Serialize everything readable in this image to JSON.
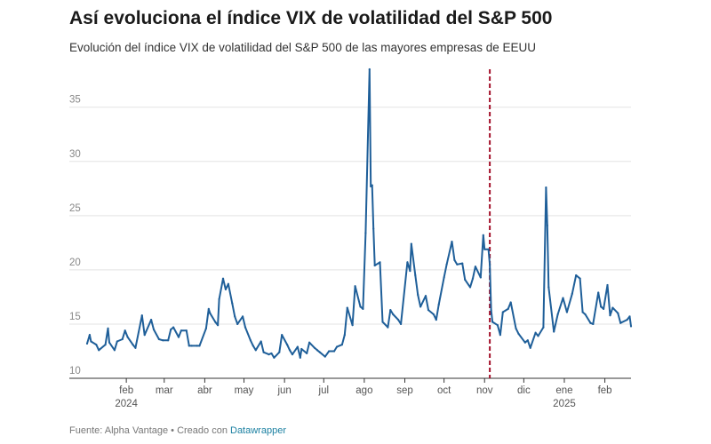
{
  "chart_data": {
    "type": "line",
    "title": "Así evoluciona el índice VIX de volatilidad del S&P 500",
    "subtitle": "Evolución del índice VIX de volatilidad del S&P 500 de las mayores empresas de EEUU",
    "ylim": [
      10,
      38.5
    ],
    "y_ticks": [
      "10",
      "15",
      "20",
      "25",
      "30",
      "35"
    ],
    "x_range": [
      "2024-01-02",
      "2025-02-21"
    ],
    "x_ticks": [
      {
        "date": "2024-02-01",
        "label": "feb",
        "sublabel": "2024"
      },
      {
        "date": "2024-03-01",
        "label": "mar",
        "sublabel": ""
      },
      {
        "date": "2024-04-01",
        "label": "abr",
        "sublabel": ""
      },
      {
        "date": "2024-05-01",
        "label": "may",
        "sublabel": ""
      },
      {
        "date": "2024-06-01",
        "label": "jun",
        "sublabel": ""
      },
      {
        "date": "2024-07-01",
        "label": "jul",
        "sublabel": ""
      },
      {
        "date": "2024-08-01",
        "label": "ago",
        "sublabel": ""
      },
      {
        "date": "2024-09-01",
        "label": "sep",
        "sublabel": ""
      },
      {
        "date": "2024-10-01",
        "label": "oct",
        "sublabel": ""
      },
      {
        "date": "2024-11-01",
        "label": "nov",
        "sublabel": ""
      },
      {
        "date": "2024-12-01",
        "label": "dic",
        "sublabel": ""
      },
      {
        "date": "2025-01-01",
        "label": "ene",
        "sublabel": "2025"
      },
      {
        "date": "2025-02-01",
        "label": "feb",
        "sublabel": ""
      }
    ],
    "grid": true,
    "reference_line": {
      "date": "2024-11-05",
      "color": "#a3102a",
      "style": "dashed"
    },
    "series": [
      {
        "color": "#1f5f99",
        "points": [
          [
            "2024-01-02",
            13.2
          ],
          [
            "2024-01-04",
            14.0
          ],
          [
            "2024-01-05",
            13.4
          ],
          [
            "2024-01-09",
            13.1
          ],
          [
            "2024-01-11",
            12.6
          ],
          [
            "2024-01-16",
            13.1
          ],
          [
            "2024-01-18",
            14.6
          ],
          [
            "2024-01-19",
            13.3
          ],
          [
            "2024-01-23",
            12.6
          ],
          [
            "2024-01-25",
            13.4
          ],
          [
            "2024-01-29",
            13.6
          ],
          [
            "2024-01-31",
            14.4
          ],
          [
            "2024-02-02",
            13.8
          ],
          [
            "2024-02-06",
            13.1
          ],
          [
            "2024-02-08",
            12.8
          ],
          [
            "2024-02-13",
            15.8
          ],
          [
            "2024-02-15",
            14.0
          ],
          [
            "2024-02-20",
            15.4
          ],
          [
            "2024-02-22",
            14.5
          ],
          [
            "2024-02-26",
            13.6
          ],
          [
            "2024-02-29",
            13.5
          ],
          [
            "2024-03-04",
            13.5
          ],
          [
            "2024-03-06",
            14.5
          ],
          [
            "2024-03-08",
            14.7
          ],
          [
            "2024-03-12",
            13.8
          ],
          [
            "2024-03-14",
            14.4
          ],
          [
            "2024-03-18",
            14.4
          ],
          [
            "2024-03-20",
            13.0
          ],
          [
            "2024-03-22",
            13.0
          ],
          [
            "2024-03-26",
            13.0
          ],
          [
            "2024-03-28",
            13.0
          ],
          [
            "2024-04-02",
            14.6
          ],
          [
            "2024-04-04",
            16.4
          ],
          [
            "2024-04-05",
            16.0
          ],
          [
            "2024-04-09",
            15.2
          ],
          [
            "2024-04-11",
            14.9
          ],
          [
            "2024-04-12",
            17.3
          ],
          [
            "2024-04-15",
            19.2
          ],
          [
            "2024-04-17",
            18.2
          ],
          [
            "2024-04-19",
            18.7
          ],
          [
            "2024-04-22",
            16.9
          ],
          [
            "2024-04-24",
            15.7
          ],
          [
            "2024-04-26",
            15.0
          ],
          [
            "2024-04-30",
            15.7
          ],
          [
            "2024-05-02",
            14.7
          ],
          [
            "2024-05-06",
            13.5
          ],
          [
            "2024-05-08",
            13.0
          ],
          [
            "2024-05-10",
            12.6
          ],
          [
            "2024-05-14",
            13.4
          ],
          [
            "2024-05-16",
            12.4
          ],
          [
            "2024-05-20",
            12.2
          ],
          [
            "2024-05-22",
            12.3
          ],
          [
            "2024-05-24",
            11.9
          ],
          [
            "2024-05-28",
            12.4
          ],
          [
            "2024-05-30",
            14.0
          ],
          [
            "2024-06-03",
            13.1
          ],
          [
            "2024-06-05",
            12.6
          ],
          [
            "2024-06-07",
            12.2
          ],
          [
            "2024-06-11",
            12.9
          ],
          [
            "2024-06-13",
            11.9
          ],
          [
            "2024-06-14",
            12.7
          ],
          [
            "2024-06-18",
            12.3
          ],
          [
            "2024-06-20",
            13.3
          ],
          [
            "2024-06-24",
            12.8
          ],
          [
            "2024-06-26",
            12.6
          ],
          [
            "2024-06-28",
            12.4
          ],
          [
            "2024-07-02",
            12.0
          ],
          [
            "2024-07-05",
            12.5
          ],
          [
            "2024-07-09",
            12.5
          ],
          [
            "2024-07-11",
            12.9
          ],
          [
            "2024-07-15",
            13.1
          ],
          [
            "2024-07-17",
            14.0
          ],
          [
            "2024-07-19",
            16.5
          ],
          [
            "2024-07-23",
            14.9
          ],
          [
            "2024-07-25",
            18.5
          ],
          [
            "2024-07-29",
            16.6
          ],
          [
            "2024-07-31",
            16.4
          ],
          [
            "2024-08-02",
            23.4
          ],
          [
            "2024-08-05",
            38.5
          ],
          [
            "2024-08-06",
            27.7
          ],
          [
            "2024-08-07",
            27.8
          ],
          [
            "2024-08-08",
            23.8
          ],
          [
            "2024-08-09",
            20.4
          ],
          [
            "2024-08-13",
            20.7
          ],
          [
            "2024-08-15",
            15.2
          ],
          [
            "2024-08-19",
            14.7
          ],
          [
            "2024-08-21",
            16.3
          ],
          [
            "2024-08-23",
            15.9
          ],
          [
            "2024-08-27",
            15.4
          ],
          [
            "2024-08-29",
            15.0
          ],
          [
            "2024-09-03",
            20.7
          ],
          [
            "2024-09-05",
            19.9
          ],
          [
            "2024-09-06",
            22.4
          ],
          [
            "2024-09-09",
            19.5
          ],
          [
            "2024-09-11",
            17.7
          ],
          [
            "2024-09-13",
            16.6
          ],
          [
            "2024-09-17",
            17.6
          ],
          [
            "2024-09-19",
            16.3
          ],
          [
            "2024-09-23",
            15.9
          ],
          [
            "2024-09-25",
            15.4
          ],
          [
            "2024-09-27",
            16.8
          ],
          [
            "2024-10-01",
            19.3
          ],
          [
            "2024-10-03",
            20.5
          ],
          [
            "2024-10-07",
            22.6
          ],
          [
            "2024-10-09",
            20.9
          ],
          [
            "2024-10-11",
            20.5
          ],
          [
            "2024-10-15",
            20.6
          ],
          [
            "2024-10-17",
            19.1
          ],
          [
            "2024-10-21",
            18.4
          ],
          [
            "2024-10-23",
            19.2
          ],
          [
            "2024-10-25",
            20.3
          ],
          [
            "2024-10-29",
            19.3
          ],
          [
            "2024-10-31",
            23.2
          ],
          [
            "2024-11-01",
            21.9
          ],
          [
            "2024-11-04",
            21.9
          ],
          [
            "2024-11-05",
            20.5
          ],
          [
            "2024-11-06",
            16.3
          ],
          [
            "2024-11-07",
            15.2
          ],
          [
            "2024-11-11",
            14.9
          ],
          [
            "2024-11-13",
            14.0
          ],
          [
            "2024-11-15",
            16.1
          ],
          [
            "2024-11-19",
            16.4
          ],
          [
            "2024-11-21",
            17.0
          ],
          [
            "2024-11-25",
            14.6
          ],
          [
            "2024-11-27",
            14.1
          ],
          [
            "2024-12-02",
            13.3
          ],
          [
            "2024-12-04",
            13.5
          ],
          [
            "2024-12-06",
            12.8
          ],
          [
            "2024-12-10",
            14.2
          ],
          [
            "2024-12-12",
            13.9
          ],
          [
            "2024-12-16",
            14.7
          ],
          [
            "2024-12-18",
            27.6
          ],
          [
            "2024-12-19",
            24.1
          ],
          [
            "2024-12-20",
            18.4
          ],
          [
            "2024-12-24",
            14.3
          ],
          [
            "2024-12-27",
            15.9
          ],
          [
            "2024-12-31",
            17.4
          ],
          [
            "2025-01-03",
            16.1
          ],
          [
            "2025-01-07",
            17.8
          ],
          [
            "2025-01-10",
            19.5
          ],
          [
            "2025-01-13",
            19.2
          ],
          [
            "2025-01-15",
            16.1
          ],
          [
            "2025-01-17",
            15.9
          ],
          [
            "2025-01-21",
            15.1
          ],
          [
            "2025-01-23",
            15.0
          ],
          [
            "2025-01-27",
            17.9
          ],
          [
            "2025-01-29",
            16.6
          ],
          [
            "2025-01-31",
            16.4
          ],
          [
            "2025-02-03",
            18.6
          ],
          [
            "2025-02-05",
            15.8
          ],
          [
            "2025-02-07",
            16.5
          ],
          [
            "2025-02-11",
            16.0
          ],
          [
            "2025-02-13",
            15.1
          ],
          [
            "2025-02-18",
            15.4
          ],
          [
            "2025-02-20",
            15.7
          ],
          [
            "2025-02-21",
            14.8
          ]
        ]
      }
    ]
  },
  "footer": {
    "source": "Fuente: Alpha Vantage • Creado con ",
    "link": "Datawrapper"
  }
}
